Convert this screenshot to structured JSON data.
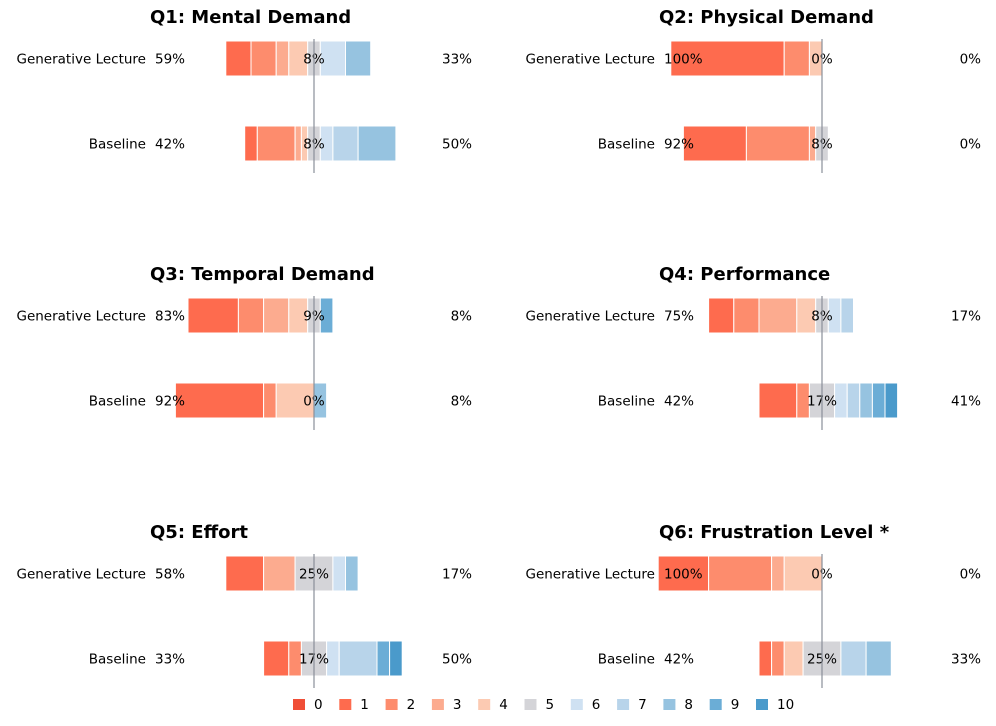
{
  "chart_data": {
    "type": "diverging-stacked-bar",
    "scale": [
      0,
      1,
      2,
      3,
      4,
      5,
      6,
      7,
      8,
      9,
      10
    ],
    "colors": [
      "#f04e37",
      "#fe6b4e",
      "#fd8c6d",
      "#fcab8f",
      "#fccab2",
      "#d4d4d8",
      "#cfe1f2",
      "#b8d4ea",
      "#96c3e0",
      "#6badd6",
      "#4a9acb"
    ],
    "legend": [
      "0",
      "1",
      "2",
      "3",
      "4",
      "5",
      "6",
      "7",
      "8",
      "9",
      "10"
    ],
    "panels": [
      {
        "title": "Q1: Mental Demand",
        "rows": [
          {
            "label": "Generative Lecture",
            "left_pct": "59%",
            "mid_pct": "8%",
            "right_pct": "33%",
            "counts": [
              0,
              2,
              2,
              1,
              1.5,
              1,
              2,
              0,
              2,
              0,
              0
            ]
          },
          {
            "label": "Baseline",
            "left_pct": "42%",
            "mid_pct": "8%",
            "right_pct": "50%",
            "counts": [
              0,
              1,
              3,
              0.5,
              0.5,
              1,
              1,
              2,
              3,
              0,
              0
            ]
          }
        ]
      },
      {
        "title": "Q2: Physical Demand",
        "rows": [
          {
            "label": "Generative Lecture",
            "left_pct": "100%",
            "mid_pct": "0%",
            "right_pct": "0%",
            "counts": [
              0,
              9,
              2,
              0,
              1,
              0,
              0,
              0,
              0,
              0,
              0
            ]
          },
          {
            "label": "Baseline",
            "left_pct": "92%",
            "mid_pct": "8%",
            "right_pct": "0%",
            "counts": [
              0,
              5,
              5,
              0.5,
              0,
              1,
              0,
              0,
              0,
              0,
              0
            ]
          }
        ]
      },
      {
        "title": "Q3: Temporal Demand",
        "rows": [
          {
            "label": "Generative Lecture",
            "left_pct": "83%",
            "mid_pct": "9%",
            "right_pct": "8%",
            "counts": [
              0,
              4,
              2,
              2,
              1.5,
              1,
              0,
              0,
              0,
              1,
              0
            ]
          },
          {
            "label": "Baseline",
            "left_pct": "92%",
            "mid_pct": "0%",
            "right_pct": "8%",
            "counts": [
              0,
              7,
              1,
              0,
              3,
              0,
              0,
              0,
              1,
              0,
              0
            ]
          }
        ]
      },
      {
        "title": "Q4: Performance",
        "rows": [
          {
            "label": "Generative Lecture",
            "left_pct": "75%",
            "mid_pct": "8%",
            "right_pct": "17%",
            "counts": [
              0,
              2,
              2,
              3,
              1.5,
              1,
              1,
              1,
              0,
              0,
              0
            ]
          },
          {
            "label": "Baseline",
            "left_pct": "42%",
            "mid_pct": "17%",
            "right_pct": "41%",
            "counts": [
              0,
              3,
              1,
              0,
              0,
              2,
              1,
              1,
              1,
              1,
              1
            ]
          }
        ]
      },
      {
        "title": "Q5: Effort",
        "rows": [
          {
            "label": "Generative Lecture",
            "left_pct": "58%",
            "mid_pct": "25%",
            "right_pct": "17%",
            "counts": [
              0,
              3,
              0,
              2.5,
              0,
              3,
              1,
              0,
              1,
              0,
              0
            ]
          },
          {
            "label": "Baseline",
            "left_pct": "33%",
            "mid_pct": "17%",
            "right_pct": "50%",
            "counts": [
              0,
              2,
              1,
              0,
              0,
              2,
              1,
              3,
              0,
              1,
              1
            ]
          }
        ]
      },
      {
        "title": "Q6: Frustration Level *",
        "rows": [
          {
            "label": "Generative Lecture",
            "left_pct": "100%",
            "mid_pct": "0%",
            "right_pct": "0%",
            "counts": [
              0,
              4,
              5,
              1,
              3,
              0,
              0,
              0,
              0,
              0,
              0
            ]
          },
          {
            "label": "Baseline",
            "left_pct": "42%",
            "mid_pct": "25%",
            "right_pct": "33%",
            "counts": [
              0,
              1,
              1,
              0,
              1.5,
              3,
              0,
              2,
              2,
              0,
              0
            ]
          }
        ]
      }
    ]
  }
}
